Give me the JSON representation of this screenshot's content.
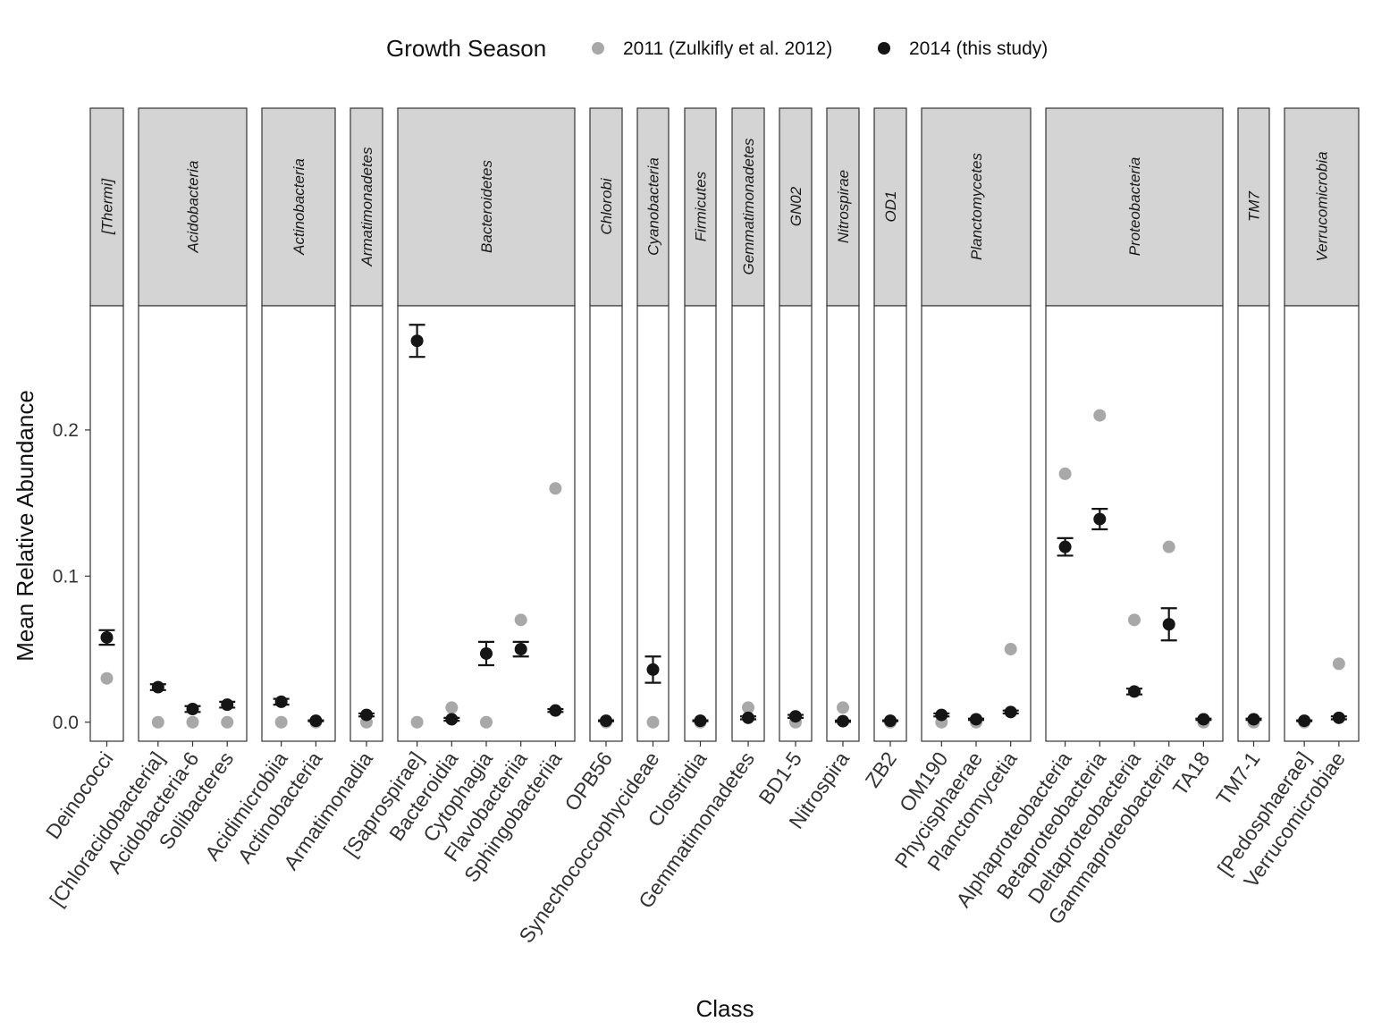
{
  "chart_data": {
    "type": "scatter",
    "xlabel": "Class",
    "ylabel": "Mean Relative Abundance",
    "ylim": [
      -0.013,
      0.285
    ],
    "yticks": [
      "0.0",
      "0.1",
      "0.2"
    ],
    "yticks_values": [
      0,
      0.1,
      0.2
    ],
    "grid": false,
    "legend": {
      "title": "Growth Season",
      "position": "top",
      "entries": [
        {
          "label": "2011 (Zulkifly et al. 2012)",
          "color": "#a8a8a8"
        },
        {
          "label": "2014 (this study)",
          "color": "#151515"
        }
      ]
    },
    "colors": {
      "series_2011": "#a8a8a8",
      "series_2014": "#151515",
      "strip_fill": "#d4d4d4",
      "border": "#333333"
    },
    "facets": [
      {
        "phylum": "[Thermi]",
        "classes": [
          {
            "name": "Deinococci",
            "v2011": 0.03,
            "v2014": 0.058,
            "se": 0.005
          }
        ]
      },
      {
        "phylum": "Acidobacteria",
        "classes": [
          {
            "name": "[Chloracidobacteria]",
            "v2011": 0.0,
            "v2014": 0.024,
            "se": 0.002
          },
          {
            "name": "Acidobacteria-6",
            "v2011": 0.0,
            "v2014": 0.009,
            "se": 0.002
          },
          {
            "name": "Solibacteres",
            "v2011": 0.0,
            "v2014": 0.012,
            "se": 0.002
          }
        ]
      },
      {
        "phylum": "Actinobacteria",
        "classes": [
          {
            "name": "Acidimicrobiia",
            "v2011": 0.0,
            "v2014": 0.014,
            "se": 0.002
          },
          {
            "name": "Actinobacteria",
            "v2011": 0.0,
            "v2014": 0.001,
            "se": 0.0003
          }
        ]
      },
      {
        "phylum": "Armatimonadetes",
        "classes": [
          {
            "name": "Armatimonadia",
            "v2011": 0.0,
            "v2014": 0.005,
            "se": 0.001
          }
        ]
      },
      {
        "phylum": "Bacteroidetes",
        "classes": [
          {
            "name": "[Saprospirae]",
            "v2011": 0.0,
            "v2014": 0.261,
            "se": 0.011
          },
          {
            "name": "Bacteroidia",
            "v2011": 0.01,
            "v2014": 0.002,
            "se": 0.001
          },
          {
            "name": "Cytophagia",
            "v2011": 0.0,
            "v2014": 0.047,
            "se": 0.008
          },
          {
            "name": "Flavobacteriia",
            "v2011": 0.07,
            "v2014": 0.05,
            "se": 0.005
          },
          {
            "name": "Sphingobacteriia",
            "v2011": 0.16,
            "v2014": 0.008,
            "se": 0.001
          }
        ]
      },
      {
        "phylum": "Chlorobi",
        "classes": [
          {
            "name": "OPB56",
            "v2011": 0.0,
            "v2014": 0.001,
            "se": 0.0003
          }
        ]
      },
      {
        "phylum": "Cyanobacteria",
        "classes": [
          {
            "name": "Synechococcophycideae",
            "v2011": 0.0,
            "v2014": 0.036,
            "se": 0.009
          }
        ]
      },
      {
        "phylum": "Firmicutes",
        "classes": [
          {
            "name": "Clostridia",
            "v2011": 0.0,
            "v2014": 0.001,
            "se": 0.0003
          }
        ]
      },
      {
        "phylum": "Gemmatimonadetes",
        "classes": [
          {
            "name": "Gemmatimonadetes",
            "v2011": 0.01,
            "v2014": 0.003,
            "se": 0.001
          }
        ]
      },
      {
        "phylum": "GN02",
        "classes": [
          {
            "name": "BD1-5",
            "v2011": 0.0,
            "v2014": 0.004,
            "se": 0.001
          }
        ]
      },
      {
        "phylum": "Nitrospirae",
        "classes": [
          {
            "name": "Nitrospira",
            "v2011": 0.01,
            "v2014": 0.0007,
            "se": 0.0005
          }
        ]
      },
      {
        "phylum": "OD1",
        "classes": [
          {
            "name": "ZB2",
            "v2011": 0.0,
            "v2014": 0.001,
            "se": 0.0003
          }
        ]
      },
      {
        "phylum": "Planctomycetes",
        "classes": [
          {
            "name": "OM190",
            "v2011": 0.0,
            "v2014": 0.005,
            "se": 0.001
          },
          {
            "name": "Phycisphaerae",
            "v2011": 0.0,
            "v2014": 0.002,
            "se": 0.0005
          },
          {
            "name": "Planctomycetia",
            "v2011": 0.05,
            "v2014": 0.007,
            "se": 0.001
          }
        ]
      },
      {
        "phylum": "Proteobacteria",
        "classes": [
          {
            "name": "Alphaproteobacteria",
            "v2011": 0.17,
            "v2014": 0.12,
            "se": 0.006
          },
          {
            "name": "Betaproteobacteria",
            "v2011": 0.21,
            "v2014": 0.139,
            "se": 0.007
          },
          {
            "name": "Deltaproteobacteria",
            "v2011": 0.07,
            "v2014": 0.021,
            "se": 0.002
          },
          {
            "name": "Gammaproteobacteria",
            "v2011": 0.12,
            "v2014": 0.067,
            "se": 0.011
          },
          {
            "name": "TA18",
            "v2011": 0.0,
            "v2014": 0.002,
            "se": 0.0005
          }
        ]
      },
      {
        "phylum": "TM7",
        "classes": [
          {
            "name": "TM7-1",
            "v2011": 0.0,
            "v2014": 0.002,
            "se": 0.0005
          }
        ]
      },
      {
        "phylum": "Verrucomicrobia",
        "classes": [
          {
            "name": "[Pedosphaerae]",
            "v2011": 0.0,
            "v2014": 0.001,
            "se": 0.0003
          },
          {
            "name": "Verrucomicrobiae",
            "v2011": 0.04,
            "v2014": 0.003,
            "se": 0.001
          }
        ]
      }
    ]
  }
}
